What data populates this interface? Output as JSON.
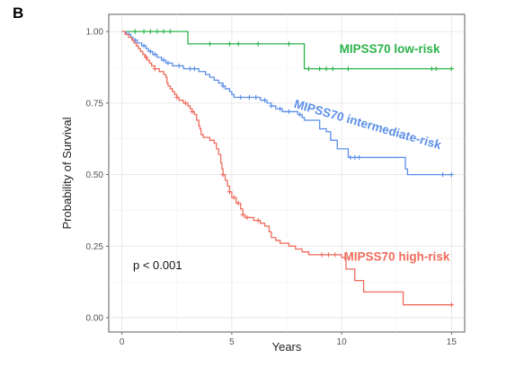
{
  "panel_label": "B",
  "chart_data": {
    "type": "line",
    "subtype": "kaplan-meier step",
    "xlabel": "Years",
    "ylabel": "Probability of Survival",
    "xlim": [
      -0.6,
      15.6
    ],
    "ylim": [
      -0.05,
      1.06
    ],
    "xticks": [
      0,
      5,
      10,
      15
    ],
    "yticks": [
      0,
      0.25,
      0.5,
      0.75,
      1.0
    ],
    "ytick_labels": [
      "0.00",
      "0.25",
      "0.50",
      "0.75",
      "1.00"
    ],
    "grid": true,
    "annotation": "p < 0.001",
    "series": [
      {
        "name": "MIPSS70 low-risk",
        "color": "#2bb34a",
        "steps": [
          [
            0,
            1.0
          ],
          [
            3.0,
            1.0
          ],
          [
            3.0,
            0.957
          ],
          [
            8.3,
            0.957
          ],
          [
            8.3,
            0.87
          ],
          [
            15,
            0.87
          ]
        ],
        "censor": [
          0.6,
          1.0,
          1.3,
          1.6,
          1.9,
          2.2,
          4.0,
          4.9,
          5.3,
          6.2,
          7.6,
          8.5,
          9.0,
          9.3,
          9.6,
          10.3,
          14.1,
          14.3,
          15.0
        ]
      },
      {
        "name": "MIPSS70 intermediate-risk",
        "color": "#5b8fe8",
        "steps": [
          [
            0,
            1.0
          ],
          [
            0.2,
            0.99
          ],
          [
            0.4,
            0.98
          ],
          [
            0.5,
            0.97
          ],
          [
            0.7,
            0.96
          ],
          [
            0.9,
            0.95
          ],
          [
            1.1,
            0.94
          ],
          [
            1.2,
            0.93
          ],
          [
            1.4,
            0.92
          ],
          [
            1.6,
            0.91
          ],
          [
            1.8,
            0.9
          ],
          [
            2.0,
            0.89
          ],
          [
            2.3,
            0.88
          ],
          [
            2.8,
            0.87
          ],
          [
            3.5,
            0.86
          ],
          [
            3.8,
            0.85
          ],
          [
            4.0,
            0.84
          ],
          [
            4.2,
            0.83
          ],
          [
            4.4,
            0.82
          ],
          [
            4.6,
            0.81
          ],
          [
            4.7,
            0.8
          ],
          [
            4.9,
            0.79
          ],
          [
            5.0,
            0.78
          ],
          [
            5.1,
            0.77
          ],
          [
            6.3,
            0.76
          ],
          [
            6.6,
            0.75
          ],
          [
            6.8,
            0.74
          ],
          [
            7.0,
            0.73
          ],
          [
            7.3,
            0.72
          ],
          [
            8.0,
            0.71
          ],
          [
            8.2,
            0.7
          ],
          [
            8.3,
            0.69
          ],
          [
            9.0,
            0.66
          ],
          [
            9.3,
            0.65
          ],
          [
            9.5,
            0.62
          ],
          [
            9.8,
            0.59
          ],
          [
            10.3,
            0.56
          ],
          [
            12.9,
            0.52
          ],
          [
            13.0,
            0.5
          ],
          [
            15,
            0.5
          ]
        ],
        "censor": [
          0.3,
          0.6,
          1.0,
          1.3,
          1.5,
          1.9,
          2.1,
          2.6,
          3.1,
          3.3,
          4.6,
          5.4,
          5.8,
          6.1,
          6.5,
          6.8,
          7.2,
          7.6,
          8.1,
          10.4,
          10.6,
          10.8,
          14.6,
          15.0
        ]
      },
      {
        "name": "MIPSS70 high-risk",
        "color": "#ef6b5c",
        "steps": [
          [
            0,
            1.0
          ],
          [
            0.15,
            0.99
          ],
          [
            0.3,
            0.98
          ],
          [
            0.45,
            0.97
          ],
          [
            0.55,
            0.96
          ],
          [
            0.65,
            0.95
          ],
          [
            0.75,
            0.94
          ],
          [
            0.85,
            0.93
          ],
          [
            0.95,
            0.92
          ],
          [
            1.05,
            0.91
          ],
          [
            1.15,
            0.9
          ],
          [
            1.25,
            0.89
          ],
          [
            1.35,
            0.88
          ],
          [
            1.5,
            0.87
          ],
          [
            1.7,
            0.86
          ],
          [
            1.9,
            0.85
          ],
          [
            2.0,
            0.84
          ],
          [
            2.05,
            0.82
          ],
          [
            2.1,
            0.81
          ],
          [
            2.2,
            0.8
          ],
          [
            2.3,
            0.79
          ],
          [
            2.4,
            0.78
          ],
          [
            2.5,
            0.77
          ],
          [
            2.6,
            0.76
          ],
          [
            2.8,
            0.75
          ],
          [
            3.0,
            0.74
          ],
          [
            3.1,
            0.73
          ],
          [
            3.2,
            0.72
          ],
          [
            3.3,
            0.71
          ],
          [
            3.4,
            0.69
          ],
          [
            3.5,
            0.67
          ],
          [
            3.55,
            0.66
          ],
          [
            3.6,
            0.64
          ],
          [
            3.7,
            0.63
          ],
          [
            4.0,
            0.62
          ],
          [
            4.2,
            0.61
          ],
          [
            4.3,
            0.59
          ],
          [
            4.4,
            0.57
          ],
          [
            4.5,
            0.54
          ],
          [
            4.55,
            0.52
          ],
          [
            4.6,
            0.5
          ],
          [
            4.7,
            0.48
          ],
          [
            4.8,
            0.46
          ],
          [
            4.9,
            0.44
          ],
          [
            5.0,
            0.42
          ],
          [
            5.2,
            0.4
          ],
          [
            5.4,
            0.38
          ],
          [
            5.5,
            0.36
          ],
          [
            5.6,
            0.35
          ],
          [
            6.0,
            0.34
          ],
          [
            6.3,
            0.33
          ],
          [
            6.5,
            0.32
          ],
          [
            6.7,
            0.3
          ],
          [
            6.8,
            0.28
          ],
          [
            7.0,
            0.27
          ],
          [
            7.2,
            0.26
          ],
          [
            7.6,
            0.25
          ],
          [
            7.9,
            0.24
          ],
          [
            8.2,
            0.23
          ],
          [
            8.5,
            0.22
          ],
          [
            10.0,
            0.21
          ],
          [
            10.2,
            0.17
          ],
          [
            10.6,
            0.13
          ],
          [
            11.0,
            0.09
          ],
          [
            12.8,
            0.045
          ],
          [
            15,
            0.045
          ]
        ],
        "censor": [
          1.1,
          1.5,
          2.5,
          2.9,
          3.2,
          4.6,
          4.9,
          5.1,
          5.3,
          5.5,
          5.7,
          6.2,
          9.1,
          9.4,
          9.7,
          15.0
        ]
      }
    ],
    "labels": [
      {
        "series": 0,
        "text": "MIPSS70 low-risk",
        "x": 9.9,
        "y": 0.925,
        "rotate": 0
      },
      {
        "series": 1,
        "text": "MIPSS70 intermediate-risk",
        "x": 7.8,
        "y": 0.735,
        "rotate": 16
      },
      {
        "series": 2,
        "text": "MIPSS70 high-risk",
        "x": 10.1,
        "y": 0.2,
        "rotate": 0
      }
    ]
  }
}
